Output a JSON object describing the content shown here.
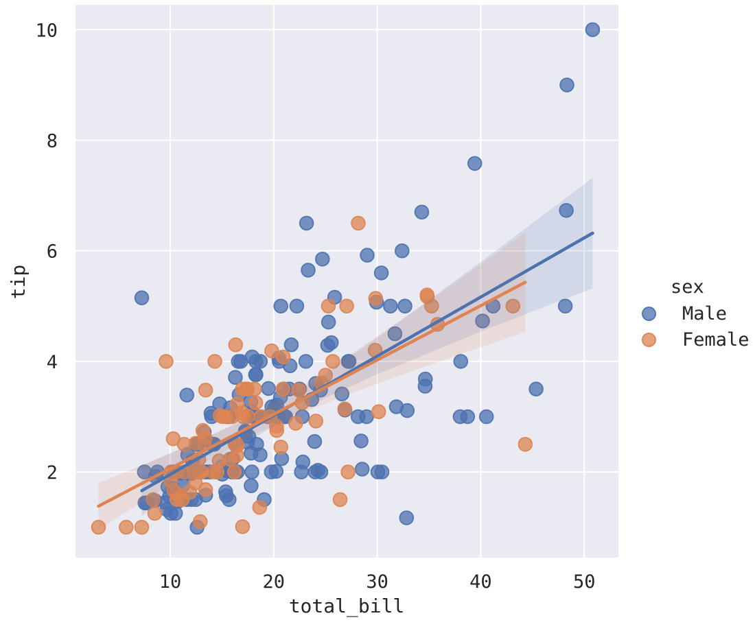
{
  "chart_data": {
    "type": "scatter",
    "title": "",
    "xlabel": "total_bill",
    "ylabel": "tip",
    "xlim": [
      0.85,
      53.3
    ],
    "ylim": [
      0.45,
      10.45
    ],
    "x_ticks": [
      10,
      20,
      30,
      40,
      50
    ],
    "y_ticks": [
      2,
      4,
      6,
      8,
      10
    ],
    "grid": true,
    "panel_color": "#EAEAF2",
    "grid_color": "#FFFFFF",
    "text_color": "#262626",
    "legend": {
      "title": "sex",
      "position": "right-outside"
    },
    "series": [
      {
        "name": "Male",
        "color": "#4C72B0",
        "regression": {
          "x1": 7.25,
          "y1": 1.66,
          "x2": 50.81,
          "y2": 6.32
        },
        "ci_band": [
          [
            7.25,
            1.21,
            2.11
          ],
          [
            12,
            1.84,
            2.5
          ],
          [
            17,
            2.48,
            2.92
          ],
          [
            21,
            2.95,
            3.31
          ],
          [
            25,
            3.34,
            3.78
          ],
          [
            30,
            3.77,
            4.43
          ],
          [
            35,
            4.15,
            5.11
          ],
          [
            40,
            4.54,
            5.8
          ],
          [
            45,
            4.9,
            6.5
          ],
          [
            50.81,
            5.32,
            7.32
          ]
        ],
        "points": [
          [
            10.34,
            1.66
          ],
          [
            21.01,
            3.5
          ],
          [
            23.68,
            3.31
          ],
          [
            25.29,
            4.71
          ],
          [
            8.77,
            2.0
          ],
          [
            26.88,
            3.12
          ],
          [
            15.04,
            1.96
          ],
          [
            14.78,
            3.23
          ],
          [
            10.27,
            1.71
          ],
          [
            15.42,
            1.57
          ],
          [
            18.43,
            3.0
          ],
          [
            21.58,
            3.92
          ],
          [
            16.29,
            3.71
          ],
          [
            20.65,
            3.35
          ],
          [
            17.92,
            4.08
          ],
          [
            39.42,
            7.58
          ],
          [
            19.82,
            3.18
          ],
          [
            17.81,
            2.34
          ],
          [
            13.37,
            2.0
          ],
          [
            12.69,
            2.0
          ],
          [
            21.7,
            4.3
          ],
          [
            9.55,
            1.45
          ],
          [
            18.35,
            2.5
          ],
          [
            17.78,
            3.27
          ],
          [
            24.06,
            3.6
          ],
          [
            16.31,
            2.0
          ],
          [
            18.69,
            2.31
          ],
          [
            31.27,
            5.0
          ],
          [
            16.04,
            2.24
          ],
          [
            17.46,
            2.54
          ],
          [
            13.94,
            3.06
          ],
          [
            9.68,
            1.32
          ],
          [
            30.4,
            5.6
          ],
          [
            18.29,
            3.0
          ],
          [
            22.23,
            5.0
          ],
          [
            32.4,
            6.0
          ],
          [
            28.55,
            2.05
          ],
          [
            18.04,
            3.0
          ],
          [
            12.54,
            2.5
          ],
          [
            9.94,
            1.56
          ],
          [
            25.56,
            4.34
          ],
          [
            19.49,
            3.51
          ],
          [
            38.01,
            3.0
          ],
          [
            11.24,
            1.76
          ],
          [
            48.27,
            6.73
          ],
          [
            20.29,
            3.21
          ],
          [
            13.81,
            2.0
          ],
          [
            11.02,
            1.98
          ],
          [
            18.29,
            3.76
          ],
          [
            17.59,
            2.64
          ],
          [
            20.08,
            3.15
          ],
          [
            20.23,
            2.01
          ],
          [
            15.01,
            2.09
          ],
          [
            12.02,
            1.97
          ],
          [
            10.51,
            1.25
          ],
          [
            17.92,
            3.08
          ],
          [
            27.2,
            4.0
          ],
          [
            22.76,
            3.0
          ],
          [
            17.29,
            2.71
          ],
          [
            19.44,
            3.0
          ],
          [
            16.66,
            3.4
          ],
          [
            32.68,
            5.0
          ],
          [
            15.98,
            2.03
          ],
          [
            13.03,
            2.0
          ],
          [
            18.28,
            4.0
          ],
          [
            24.71,
            5.85
          ],
          [
            21.16,
            3.0
          ],
          [
            28.97,
            3.0
          ],
          [
            22.49,
            3.5
          ],
          [
            40.17,
            4.73
          ],
          [
            27.28,
            4.0
          ],
          [
            12.03,
            1.5
          ],
          [
            21.01,
            3.0
          ],
          [
            12.46,
            1.5
          ],
          [
            15.36,
            1.64
          ],
          [
            20.49,
            4.06
          ],
          [
            25.21,
            4.29
          ],
          [
            18.24,
            3.76
          ],
          [
            14.0,
            3.0
          ],
          [
            38.07,
            4.0
          ],
          [
            23.95,
            2.55
          ],
          [
            29.93,
            5.07
          ],
          [
            11.69,
            2.31
          ],
          [
            14.26,
            2.5
          ],
          [
            15.95,
            2.0
          ],
          [
            8.52,
            1.48
          ],
          [
            22.82,
            2.18
          ],
          [
            19.08,
            1.5
          ],
          [
            10.33,
            2.0
          ],
          [
            16.0,
            2.0
          ],
          [
            34.3,
            6.7
          ],
          [
            41.19,
            5.0
          ],
          [
            9.78,
            1.73
          ],
          [
            7.51,
            2.0
          ],
          [
            14.07,
            2.5
          ],
          [
            13.13,
            2.0
          ],
          [
            17.26,
            2.74
          ],
          [
            24.55,
            2.0
          ],
          [
            19.77,
            2.0
          ],
          [
            48.17,
            5.0
          ],
          [
            16.49,
            2.0
          ],
          [
            21.5,
            3.5
          ],
          [
            12.66,
            2.5
          ],
          [
            13.81,
            2.0
          ],
          [
            24.52,
            3.48
          ],
          [
            20.76,
            2.24
          ],
          [
            31.71,
            4.5
          ],
          [
            50.81,
            10.0
          ],
          [
            15.81,
            3.16
          ],
          [
            7.25,
            5.15
          ],
          [
            31.85,
            3.18
          ],
          [
            16.82,
            4.0
          ],
          [
            32.9,
            3.11
          ],
          [
            17.89,
            2.0
          ],
          [
            14.48,
            2.0
          ],
          [
            34.63,
            3.55
          ],
          [
            34.65,
            3.68
          ],
          [
            23.33,
            5.65
          ],
          [
            45.35,
            3.5
          ],
          [
            23.17,
            6.5
          ],
          [
            40.55,
            3.0
          ],
          [
            20.69,
            5.0
          ],
          [
            30.46,
            2.0
          ],
          [
            23.1,
            4.0
          ],
          [
            15.69,
            1.5
          ],
          [
            28.44,
            2.56
          ],
          [
            15.48,
            2.02
          ],
          [
            16.58,
            4.0
          ],
          [
            7.56,
            1.44
          ],
          [
            10.34,
            2.0
          ],
          [
            13.51,
            2.0
          ],
          [
            18.71,
            4.0
          ],
          [
            20.53,
            4.0
          ],
          [
            26.59,
            3.41
          ],
          [
            38.73,
            3.0
          ],
          [
            24.27,
            2.03
          ],
          [
            30.06,
            2.0
          ],
          [
            25.89,
            5.16
          ],
          [
            48.33,
            9.0
          ],
          [
            28.15,
            3.0
          ],
          [
            11.59,
            1.5
          ],
          [
            7.74,
            1.44
          ],
          [
            12.16,
            2.2
          ],
          [
            8.58,
            1.92
          ],
          [
            13.42,
            1.58
          ],
          [
            20.45,
            3.0
          ],
          [
            13.28,
            2.72
          ],
          [
            24.01,
            2.0
          ],
          [
            15.69,
            3.0
          ],
          [
            11.61,
            3.39
          ],
          [
            10.77,
            1.47
          ],
          [
            15.53,
            3.0
          ],
          [
            10.07,
            1.25
          ],
          [
            12.6,
            1.0
          ],
          [
            32.83,
            1.17
          ],
          [
            29.03,
            5.92
          ],
          [
            22.67,
            2.0
          ],
          [
            17.82,
            1.75
          ]
        ]
      },
      {
        "name": "Female",
        "color": "#DD8452",
        "regression": {
          "x1": 3.07,
          "y1": 1.38,
          "x2": 44.3,
          "y2": 5.43
        },
        "ci_band": [
          [
            3.07,
            0.96,
            1.8
          ],
          [
            8,
            1.54,
            2.18
          ],
          [
            13,
            2.12,
            2.58
          ],
          [
            18,
            2.66,
            3.04
          ],
          [
            23,
            3.09,
            3.59
          ],
          [
            28,
            3.46,
            4.2
          ],
          [
            33,
            3.8,
            4.84
          ],
          [
            38,
            4.13,
            5.49
          ],
          [
            44.3,
            4.53,
            6.33
          ]
        ],
        "points": [
          [
            16.99,
            1.01
          ],
          [
            24.59,
            3.61
          ],
          [
            35.26,
            5.0
          ],
          [
            14.83,
            3.02
          ],
          [
            10.33,
            1.67
          ],
          [
            16.97,
            3.5
          ],
          [
            20.29,
            2.75
          ],
          [
            15.77,
            2.23
          ],
          [
            19.65,
            3.0
          ],
          [
            15.06,
            3.0
          ],
          [
            20.69,
            2.45
          ],
          [
            16.93,
            3.07
          ],
          [
            10.29,
            2.6
          ],
          [
            34.81,
            5.2
          ],
          [
            26.41,
            1.5
          ],
          [
            16.45,
            2.47
          ],
          [
            3.07,
            1.0
          ],
          [
            17.07,
            3.0
          ],
          [
            26.86,
            3.14
          ],
          [
            25.28,
            5.0
          ],
          [
            14.73,
            2.2
          ],
          [
            10.07,
            1.83
          ],
          [
            34.83,
            5.17
          ],
          [
            5.75,
            1.0
          ],
          [
            16.32,
            4.3
          ],
          [
            22.75,
            3.25
          ],
          [
            11.35,
            2.5
          ],
          [
            15.38,
            3.0
          ],
          [
            44.3,
            2.5
          ],
          [
            22.42,
            3.48
          ],
          [
            20.92,
            4.08
          ],
          [
            14.31,
            4.0
          ],
          [
            7.25,
            1.0
          ],
          [
            25.71,
            4.0
          ],
          [
            17.31,
            3.5
          ],
          [
            10.65,
            1.5
          ],
          [
            12.43,
            1.8
          ],
          [
            24.08,
            2.92
          ],
          [
            13.42,
            1.68
          ],
          [
            12.48,
            2.52
          ],
          [
            29.8,
            4.2
          ],
          [
            14.52,
            2.0
          ],
          [
            11.38,
            2.0
          ],
          [
            20.27,
            2.83
          ],
          [
            11.17,
            1.5
          ],
          [
            12.26,
            2.0
          ],
          [
            18.26,
            3.25
          ],
          [
            8.51,
            1.25
          ],
          [
            14.15,
            2.0
          ],
          [
            13.16,
            2.75
          ],
          [
            17.47,
            3.5
          ],
          [
            27.05,
            5.0
          ],
          [
            16.43,
            2.3
          ],
          [
            8.35,
            1.5
          ],
          [
            18.64,
            1.36
          ],
          [
            11.87,
            1.63
          ],
          [
            29.85,
            5.14
          ],
          [
            25.0,
            3.75
          ],
          [
            13.39,
            2.61
          ],
          [
            16.21,
            2.0
          ],
          [
            17.51,
            3.0
          ],
          [
            10.59,
            1.61
          ],
          [
            10.63,
            2.0
          ],
          [
            9.6,
            4.0
          ],
          [
            20.9,
            3.5
          ],
          [
            18.15,
            3.5
          ],
          [
            19.81,
            4.19
          ],
          [
            43.11,
            5.0
          ],
          [
            13.0,
            2.0
          ],
          [
            12.74,
            2.01
          ],
          [
            13.0,
            2.0
          ],
          [
            16.4,
            2.5
          ],
          [
            16.47,
            3.23
          ],
          [
            12.76,
            2.23
          ],
          [
            13.27,
            2.5
          ],
          [
            28.17,
            6.5
          ],
          [
            12.9,
            1.1
          ],
          [
            30.14,
            3.09
          ],
          [
            13.42,
            3.48
          ],
          [
            15.98,
            3.0
          ],
          [
            16.27,
            2.5
          ],
          [
            10.09,
            2.0
          ],
          [
            22.12,
            2.88
          ],
          [
            35.83,
            4.67
          ],
          [
            27.18,
            2.0
          ],
          [
            18.78,
            3.0
          ]
        ]
      }
    ]
  }
}
